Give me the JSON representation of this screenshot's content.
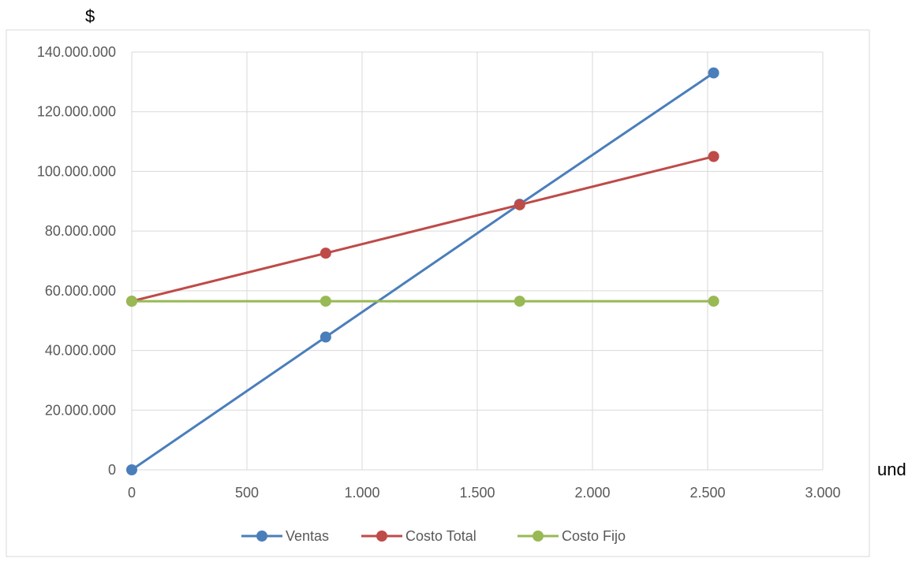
{
  "chart_data": {
    "type": "line",
    "title": "",
    "ylabel": "$",
    "xlabel": "und",
    "x": [
      0,
      842,
      1684,
      2526
    ],
    "xlim": [
      0,
      3000
    ],
    "ylim": [
      0,
      140000000
    ],
    "x_ticks": [
      0,
      500,
      1000,
      1500,
      2000,
      2500,
      3000
    ],
    "x_tick_labels": [
      "0",
      "500",
      "1.000",
      "1.500",
      "2.000",
      "2.500",
      "3.000"
    ],
    "y_ticks": [
      0,
      20000000,
      40000000,
      60000000,
      80000000,
      100000000,
      120000000,
      140000000
    ],
    "y_tick_labels": [
      "0",
      "20.000.000",
      "40.000.000",
      "60.000.000",
      "80.000.000",
      "100.000.000",
      "120.000.000",
      "140.000.000"
    ],
    "grid": true,
    "legend_position": "bottom",
    "series": [
      {
        "name": "Ventas",
        "color": "#4a7ebb",
        "values": [
          0,
          44500000,
          89000000,
          133000000
        ]
      },
      {
        "name": "Costo Total",
        "color": "#be4b48",
        "values": [
          56500000,
          72600000,
          88800000,
          105000000
        ]
      },
      {
        "name": "Costo Fijo",
        "color": "#98b954",
        "values": [
          56500000,
          56500000,
          56500000,
          56500000
        ]
      }
    ]
  }
}
